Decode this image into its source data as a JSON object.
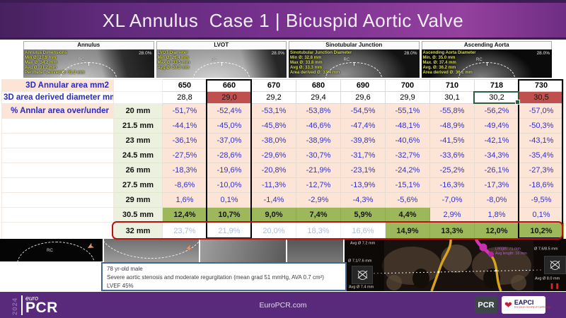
{
  "header": {
    "title": "XL Annulus  Case 1 | Bicuspid Aortic Valve"
  },
  "panels": [
    {
      "title": "Annulus",
      "opacity": "28.0%",
      "cusp": "RC",
      "lines": [
        "Annulus Dimensions",
        "Min Ø: 27.9 mm",
        "Max Ø: 34.2 mm",
        "Avg Ø: 31.2 mm",
        "Perimeter derived Ø: 31.3 mm"
      ]
    },
    {
      "title": "LVOT",
      "opacity": "28.0%",
      "cusp": "RC",
      "lines": [
        "LVOT Diameter",
        "Min Ø: 26.4 mm",
        "Max Ø: 33.5 mm",
        "Avg Ø: 30.3 mm"
      ]
    },
    {
      "title": "Sinotubular Junction",
      "opacity": "28.0%",
      "cusp": "RC",
      "lines": [
        "Sinotubular Junction Diameter",
        "Min Ø: 32.8 mm",
        "Max Ø: 33.8 mm",
        "Avg Ø: 33.3 mm",
        "Area derived Ø: 33.4 mm"
      ]
    },
    {
      "title": "Ascending Aorta",
      "opacity": "28.0%",
      "cusp": "RC",
      "lines": [
        "Ascending Aorta Diameter",
        "Min. Ø: 35.0 mm",
        "Max. Ø: 37.4 mm",
        "Avg. Ø: 36.2 mm",
        "Area derived Ø: 36.1 mm"
      ]
    }
  ],
  "table": {
    "area_label": "3D Annular area mm2",
    "diameter_label": "3D area derived diameter mm",
    "percent_label": "% Annlar area over/under",
    "areas": [
      "650",
      "660",
      "670",
      "680",
      "690",
      "700",
      "710",
      "718",
      "730"
    ],
    "diameters": [
      "28,8",
      "29,0",
      "29,2",
      "29,4",
      "29,6",
      "29,9",
      "30,1",
      "30,2",
      "30,5"
    ],
    "size_rows": [
      {
        "size": "20 mm",
        "values": [
          "-51,7%",
          "-52,4%",
          "-53,1%",
          "-53,8%",
          "-54,5%",
          "-55,1%",
          "-55,8%",
          "-56,2%",
          "-57,0%"
        ]
      },
      {
        "size": "21.5 mm",
        "values": [
          "-44,1%",
          "-45,0%",
          "-45,8%",
          "-46,6%",
          "-47,4%",
          "-48,1%",
          "-48,9%",
          "-49,4%",
          "-50,3%"
        ]
      },
      {
        "size": "23 mm",
        "values": [
          "-36,1%",
          "-37,0%",
          "-38,0%",
          "-38,9%",
          "-39,8%",
          "-40,6%",
          "-41,5%",
          "-42,1%",
          "-43,1%"
        ]
      },
      {
        "size": "24.5 mm",
        "values": [
          "-27,5%",
          "-28,6%",
          "-29,6%",
          "-30,7%",
          "-31,7%",
          "-32,7%",
          "-33,6%",
          "-34,3%",
          "-35,4%"
        ]
      },
      {
        "size": "26 mm",
        "values": [
          "-18,3%",
          "-19,6%",
          "-20,8%",
          "-21,9%",
          "-23,1%",
          "-24,2%",
          "-25,2%",
          "-26,1%",
          "-27,3%"
        ]
      },
      {
        "size": "27.5 mm",
        "values": [
          "-8,6%",
          "-10,0%",
          "-11,3%",
          "-12,7%",
          "-13,9%",
          "-15,1%",
          "-16,3%",
          "-17,3%",
          "-18,6%"
        ]
      },
      {
        "size": "29 mm",
        "values": [
          "1,6%",
          "0,1%",
          "-1,4%",
          "-2,9%",
          "-4,3%",
          "-5,6%",
          "-7,0%",
          "-8,0%",
          "-9,5%"
        ]
      },
      {
        "size": "30.5 mm",
        "values": [
          "12,4%",
          "10,7%",
          "9,0%",
          "7,4%",
          "5,9%",
          "4,4%",
          "2,9%",
          "1,8%",
          "0,1%"
        ]
      },
      {
        "size": "32 mm",
        "values": [
          "23,7%",
          "21,9%",
          "20,0%",
          "18,3%",
          "16,6%",
          "14,9%",
          "13,3%",
          "12,0%",
          "10,2%"
        ]
      }
    ],
    "highlights": {
      "red_diameter_cols": [
        1,
        8
      ],
      "selected_diameter_col": 7,
      "green_cols_30_5": [
        0,
        1,
        2,
        3,
        4,
        5
      ],
      "green_cols_32": [
        5,
        6,
        7,
        8
      ],
      "boxed_area_cols": [
        1,
        8
      ],
      "outlined_row": "32 mm"
    }
  },
  "bottom": {
    "cusp": "RC"
  },
  "angiogram": {
    "left_labels": [
      "Avg Ø 7.2 mm",
      "Ø 7.1/7.6 mm",
      "Avg Ø 7.4 mm"
    ],
    "right_labels": [
      "Ø 7.6/8.5 mm",
      "Avg Ø 8.0 mm"
    ],
    "purple_lines": [
      "Length: 71 mm",
      "Avg length: 16 mm"
    ]
  },
  "patient": {
    "lines": [
      "78 yr-old male",
      "Severe aortic stenosis and moderate regurgitation (mean grad 51 mmHg, AVA 0.7 cm²)",
      "LVEF 45%"
    ]
  },
  "footer": {
    "year": "2024",
    "euro": "euro",
    "pcr": "PCR",
    "site": "EuroPCR.com",
    "pcr_badge": "PCR",
    "eapci": "EAPCI",
    "eapci_sub": "European Society of Cardiology"
  },
  "colors": {
    "header_purple": "#6f2d83",
    "footer_purple": "#59297b",
    "highlight_red": "#c0504d",
    "highlight_green": "#9cb85a",
    "selection_red": "#ba1111",
    "selection_green": "#2e5c3f",
    "table_blue": "#3333cc",
    "peach": "#fce4d6",
    "size_col_green": "#ebf1de",
    "pale_blue_text": "#aabdde"
  }
}
